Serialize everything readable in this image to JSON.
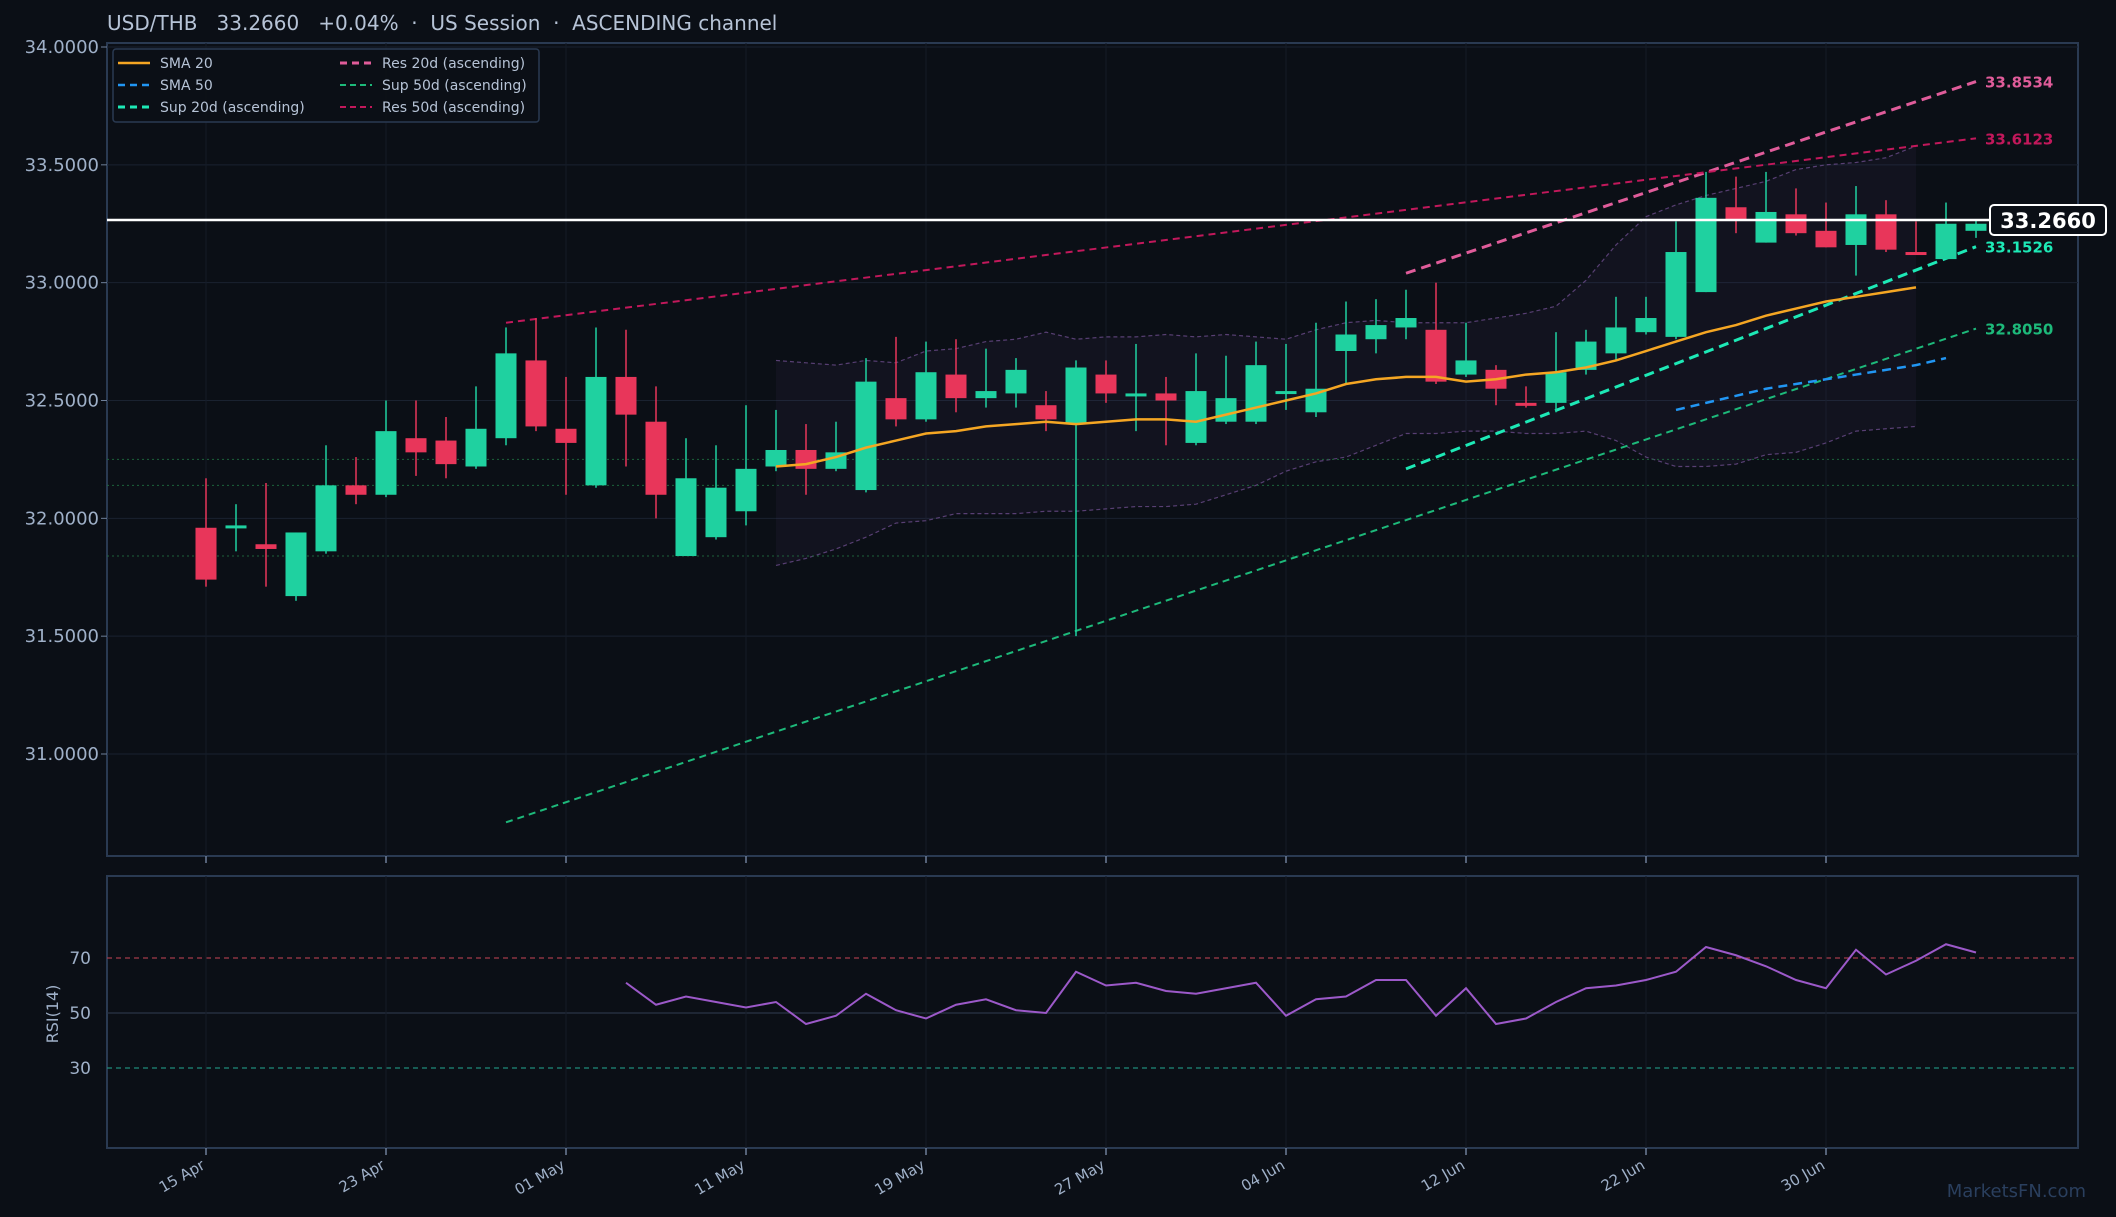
{
  "header": {
    "title": "USD/THB   33.2660   +0.04%  ·  US Session  ·  ASCENDING channel"
  },
  "watermark": "MarketsFN.com",
  "colors": {
    "background": "#0b0f16",
    "panel_border": "#2a3a52",
    "bull": "#1fd1a0",
    "bear": "#e8365a",
    "sma20": "#f5a623",
    "sma50": "#2196f3",
    "sup20": "#1de9b6",
    "res20": "#e05c9a",
    "sup50": "#1db97a",
    "res50": "#c2185b",
    "rsi": "#9c59c9",
    "price_line": "#ffffff"
  },
  "chart_data": [
    {
      "type": "candlestick",
      "title": "USD/THB   33.2660   +0.04%  ·  US Session  ·  ASCENDING channel",
      "ylim": [
        30.57,
        34.0
      ],
      "yticks": [
        "34.0000",
        "33.5000",
        "33.0000",
        "32.5000",
        "32.0000",
        "31.5000",
        "31.0000"
      ],
      "ytick_values": [
        34.0,
        33.5,
        33.0,
        32.5,
        32.0,
        31.5,
        31.0
      ],
      "xticks": [
        "15 Apr",
        "23 Apr",
        "01 May",
        "11 May",
        "19 May",
        "27 May",
        "04 Jun",
        "12 Jun",
        "22 Jun",
        "30 Jun"
      ],
      "xtick_index": [
        0,
        6,
        12,
        18,
        24,
        30,
        36,
        42,
        48,
        54
      ],
      "current_price": 33.266,
      "current_price_label": "33.2660",
      "grid": true,
      "legend_position": "top-left",
      "candles": [
        [
          31.96,
          32.17,
          31.71,
          31.74
        ],
        [
          31.97,
          32.06,
          31.86,
          31.97
        ],
        [
          31.89,
          32.15,
          31.71,
          31.87
        ],
        [
          31.67,
          31.94,
          31.65,
          31.94
        ],
        [
          31.86,
          32.31,
          31.85,
          32.14
        ],
        [
          32.14,
          32.26,
          32.06,
          32.1
        ],
        [
          32.1,
          32.5,
          32.09,
          32.37
        ],
        [
          32.34,
          32.5,
          32.18,
          32.28
        ],
        [
          32.33,
          32.43,
          32.17,
          32.23
        ],
        [
          32.22,
          32.56,
          32.21,
          32.38
        ],
        [
          32.34,
          32.81,
          32.31,
          32.7
        ],
        [
          32.67,
          32.85,
          32.37,
          32.39
        ],
        [
          32.38,
          32.6,
          32.1,
          32.32
        ],
        [
          32.14,
          32.81,
          32.13,
          32.6
        ],
        [
          32.6,
          32.8,
          32.22,
          32.44
        ],
        [
          32.41,
          32.56,
          32.0,
          32.1
        ],
        [
          31.84,
          32.34,
          31.84,
          32.17
        ],
        [
          31.92,
          32.31,
          31.91,
          32.13
        ],
        [
          32.03,
          32.48,
          31.97,
          32.21
        ],
        [
          32.22,
          32.46,
          32.2,
          32.29
        ],
        [
          32.29,
          32.4,
          32.1,
          32.21
        ],
        [
          32.21,
          32.41,
          32.2,
          32.28
        ],
        [
          32.12,
          32.68,
          32.11,
          32.58
        ],
        [
          32.51,
          32.77,
          32.39,
          32.42
        ],
        [
          32.42,
          32.75,
          32.41,
          32.62
        ],
        [
          32.61,
          32.76,
          32.45,
          32.51
        ],
        [
          32.51,
          32.72,
          32.47,
          32.54
        ],
        [
          32.53,
          32.68,
          32.47,
          32.63
        ],
        [
          32.48,
          32.54,
          32.37,
          32.42
        ],
        [
          32.4,
          32.67,
          31.5,
          32.64
        ],
        [
          32.61,
          32.67,
          32.49,
          32.53
        ],
        [
          32.53,
          32.74,
          32.37,
          32.53
        ],
        [
          32.53,
          32.6,
          32.31,
          32.5
        ],
        [
          32.32,
          32.7,
          32.31,
          32.54
        ],
        [
          32.41,
          32.69,
          32.4,
          32.51
        ],
        [
          32.41,
          32.75,
          32.4,
          32.65
        ],
        [
          32.54,
          32.74,
          32.46,
          32.54
        ],
        [
          32.45,
          32.83,
          32.43,
          32.55
        ],
        [
          32.71,
          32.92,
          32.57,
          32.78
        ],
        [
          32.76,
          32.93,
          32.7,
          32.82
        ],
        [
          32.81,
          32.97,
          32.76,
          32.85
        ],
        [
          32.8,
          33.0,
          32.57,
          32.58
        ],
        [
          32.61,
          32.83,
          32.6,
          32.67
        ],
        [
          32.63,
          32.65,
          32.48,
          32.55
        ],
        [
          32.49,
          32.56,
          32.47,
          32.48
        ],
        [
          32.49,
          32.79,
          32.45,
          32.62
        ],
        [
          32.63,
          32.8,
          32.61,
          32.75
        ],
        [
          32.7,
          32.94,
          32.67,
          32.81
        ],
        [
          32.79,
          32.94,
          32.78,
          32.85
        ],
        [
          32.77,
          33.26,
          32.76,
          33.13
        ],
        [
          32.96,
          33.47,
          32.96,
          33.36
        ],
        [
          33.32,
          33.45,
          33.21,
          33.27
        ],
        [
          33.17,
          33.47,
          33.17,
          33.3
        ],
        [
          33.29,
          33.4,
          33.2,
          33.21
        ],
        [
          33.22,
          33.34,
          33.15,
          33.15
        ],
        [
          33.16,
          33.41,
          33.03,
          33.29
        ],
        [
          33.29,
          33.35,
          33.13,
          33.14
        ],
        [
          33.13,
          33.26,
          33.12,
          33.12
        ],
        [
          33.1,
          33.34,
          33.1,
          33.25
        ],
        [
          33.22,
          33.27,
          33.19,
          33.25
        ]
      ],
      "sma20": {
        "name": "SMA 20",
        "start_index": 19,
        "values": [
          32.22,
          32.23,
          32.26,
          32.3,
          32.33,
          32.36,
          32.37,
          32.39,
          32.4,
          32.41,
          32.4,
          32.41,
          32.42,
          32.42,
          32.41,
          32.44,
          32.47,
          32.5,
          32.53,
          32.57,
          32.59,
          32.6,
          32.6,
          32.58,
          32.59,
          32.61,
          32.62,
          32.64,
          32.67,
          32.71,
          32.75,
          32.79,
          32.82,
          32.86,
          32.89,
          32.92,
          32.94,
          32.96,
          32.98
        ]
      },
      "sma50": {
        "name": "SMA 50",
        "start_index": 49,
        "values": [
          32.46,
          32.49,
          32.52,
          32.55,
          32.57,
          32.59,
          32.61,
          32.63,
          32.65,
          32.68
        ]
      },
      "bollinger": {
        "start_index": 19,
        "upper": [
          32.67,
          32.66,
          32.65,
          32.67,
          32.66,
          32.71,
          32.72,
          32.75,
          32.76,
          32.79,
          32.76,
          32.77,
          32.77,
          32.78,
          32.77,
          32.78,
          32.77,
          32.76,
          32.8,
          32.83,
          32.84,
          32.83,
          32.83,
          32.83,
          32.85,
          32.87,
          32.9,
          33.01,
          33.16,
          33.28,
          33.33,
          33.37,
          33.4,
          33.43,
          33.48,
          33.5,
          33.51,
          33.53,
          33.58
        ],
        "lower": [
          31.8,
          31.83,
          31.87,
          31.92,
          31.98,
          31.99,
          32.02,
          32.02,
          32.02,
          32.03,
          32.03,
          32.04,
          32.05,
          32.05,
          32.06,
          32.1,
          32.14,
          32.2,
          32.24,
          32.26,
          32.31,
          32.36,
          32.36,
          32.37,
          32.37,
          32.36,
          32.36,
          32.37,
          32.33,
          32.26,
          32.22,
          32.22,
          32.23,
          32.27,
          32.28,
          32.32,
          32.37,
          32.38,
          32.39
        ]
      },
      "trendlines": [
        {
          "name": "Sup 20d (ascending)",
          "from": [
            40,
            32.21
          ],
          "to": [
            59,
            33.1526
          ],
          "label": "33.1526"
        },
        {
          "name": "Res 20d (ascending)",
          "from": [
            40,
            33.04
          ],
          "to": [
            59,
            33.8534
          ],
          "label": "33.8534"
        },
        {
          "name": "Sup 50d (ascending)",
          "from": [
            10,
            30.71
          ],
          "to": [
            59,
            32.805
          ],
          "label": "32.8050"
        },
        {
          "name": "Res 50d (ascending)",
          "from": [
            10,
            32.83
          ],
          "to": [
            59,
            33.6123
          ],
          "label": "33.6123"
        }
      ],
      "horizontal_levels": [
        32.25,
        32.14,
        31.84
      ],
      "legend": [
        "SMA 20",
        "SMA 50",
        "Sup 20d (ascending)",
        "Res 20d (ascending)",
        "Sup 50d (ascending)",
        "Res 50d (ascending)"
      ]
    },
    {
      "type": "line",
      "ylabel": "RSI(14)",
      "ylim": [
        0,
        100
      ],
      "yticks": [
        "70",
        "50",
        "30"
      ],
      "ytick_values": [
        70,
        50,
        30
      ],
      "levels": [
        70,
        50,
        30
      ],
      "series": [
        {
          "name": "RSI(14)",
          "start_index": 14,
          "values": [
            61,
            53,
            56,
            54,
            52,
            54,
            46,
            49,
            57,
            51,
            48,
            53,
            55,
            51,
            50,
            65,
            60,
            61,
            58,
            57,
            59,
            61,
            49,
            55,
            56,
            62,
            62,
            49,
            59,
            46,
            48,
            54,
            59,
            60,
            62,
            65,
            74,
            71,
            67,
            62,
            59,
            73,
            64,
            69,
            75,
            72
          ]
        }
      ]
    }
  ]
}
